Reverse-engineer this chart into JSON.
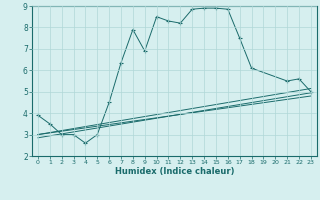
{
  "title": "",
  "xlabel": "Humidex (Indice chaleur)",
  "bg_color": "#d6efef",
  "line_color": "#1a6b6b",
  "grid_color": "#b0d8d8",
  "xlim": [
    -0.5,
    23.5
  ],
  "ylim": [
    2,
    9
  ],
  "xticks": [
    0,
    1,
    2,
    3,
    4,
    5,
    6,
    7,
    8,
    9,
    10,
    11,
    12,
    13,
    14,
    15,
    16,
    17,
    18,
    19,
    20,
    21,
    22,
    23
  ],
  "yticks": [
    2,
    3,
    4,
    5,
    6,
    7,
    8,
    9
  ],
  "curve1_x": [
    0,
    1,
    2,
    3,
    4,
    5,
    6,
    7,
    8,
    9,
    10,
    11,
    12,
    13,
    14,
    15,
    16,
    17,
    18,
    21,
    22,
    23
  ],
  "curve1_y": [
    3.9,
    3.5,
    3.0,
    3.0,
    2.6,
    3.0,
    4.5,
    6.35,
    7.9,
    6.9,
    8.5,
    8.3,
    8.2,
    8.85,
    8.9,
    8.9,
    8.85,
    7.5,
    6.1,
    5.5,
    5.6,
    5.0
  ],
  "line2_x": [
    0,
    23
  ],
  "line2_y": [
    3.0,
    4.8
  ],
  "line3_x": [
    0,
    23
  ],
  "line3_y": [
    3.0,
    5.15
  ],
  "line4_x": [
    0,
    23
  ],
  "line4_y": [
    2.85,
    4.95
  ]
}
